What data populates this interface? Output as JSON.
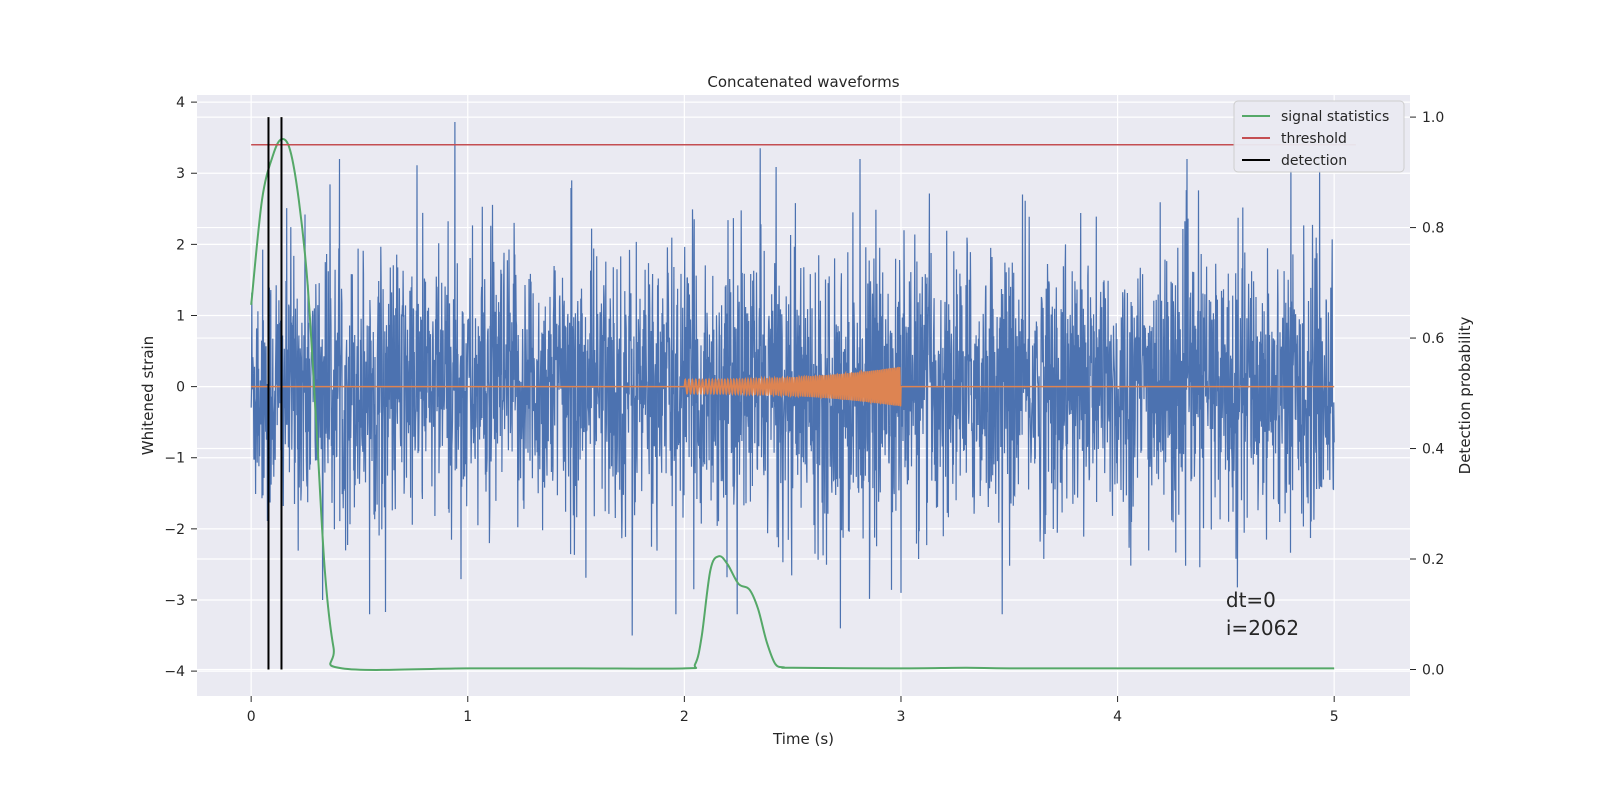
{
  "chart_data": {
    "type": "line",
    "title": "Concatenated waveforms",
    "xlabel": "Time (s)",
    "ylabel": "Whitened strain",
    "y2label": "Detection probability",
    "xlim": [
      -0.25,
      5.35
    ],
    "ylim": [
      -4.35,
      4.1
    ],
    "y2lim": [
      -0.048,
      1.04
    ],
    "xticks": [
      0,
      1,
      2,
      3,
      4,
      5
    ],
    "yticks": [
      -4,
      -3,
      -2,
      -1,
      0,
      1,
      2,
      3,
      4
    ],
    "y2ticks": [
      0.0,
      0.2,
      0.4,
      0.6,
      0.8,
      1.0
    ],
    "xtick_labels": [
      "0",
      "1",
      "2",
      "3",
      "4",
      "5"
    ],
    "ytick_labels": [
      "−4",
      "−3",
      "−2",
      "−1",
      "0",
      "1",
      "2",
      "3",
      "4"
    ],
    "y2tick_labels": [
      "0.0",
      "0.2",
      "0.4",
      "0.6",
      "0.8",
      "1.0"
    ],
    "grid": true,
    "legend_position": "top-right",
    "legend": [
      "signal statistics",
      "threshold",
      "detection"
    ],
    "colors": {
      "strain": "#4c72b0",
      "waveform": "#dd8452",
      "signal_statistics": "#55a868",
      "threshold": "#c44e52",
      "detection": "#000000",
      "background": "#eaeaf2",
      "grid": "#ffffff"
    },
    "series": [
      {
        "name": "strain",
        "axis": "left",
        "x_range": [
          0,
          5
        ],
        "noise_std": 1.0,
        "spike_peaks": [
          [
            0.94,
            3.72
          ],
          [
            2.35,
            3.35
          ],
          [
            1.76,
            -3.5
          ],
          [
            2.72,
            -3.4
          ],
          [
            3.0,
            -2.9
          ],
          [
            4.8,
            3.2
          ],
          [
            0.33,
            -3.0
          ]
        ]
      },
      {
        "name": "waveform",
        "axis": "left",
        "x_range": [
          2.0,
          3.0
        ],
        "amplitude_range": [
          0.1,
          0.28
        ]
      },
      {
        "name": "signal statistics",
        "axis": "right",
        "x": [
          0.0,
          0.05,
          0.1,
          0.14,
          0.18,
          0.22,
          0.26,
          0.3,
          0.34,
          0.38,
          0.42,
          1.0,
          1.5,
          2.0,
          2.05,
          2.08,
          2.12,
          2.16,
          2.2,
          2.25,
          2.3,
          2.34,
          2.38,
          2.42,
          2.46,
          2.5,
          3.0,
          3.3,
          3.5,
          4.0,
          5.0
        ],
        "values": [
          0.66,
          0.85,
          0.93,
          0.96,
          0.94,
          0.85,
          0.7,
          0.45,
          0.18,
          0.04,
          0.002,
          0.002,
          0.002,
          0.002,
          0.01,
          0.06,
          0.18,
          0.205,
          0.19,
          0.155,
          0.145,
          0.11,
          0.05,
          0.01,
          0.004,
          0.003,
          0.002,
          0.003,
          0.002,
          0.002,
          0.002
        ]
      },
      {
        "name": "threshold",
        "axis": "right",
        "x": [
          0,
          5.1
        ],
        "values": [
          0.95,
          0.95
        ]
      },
      {
        "name": "detection",
        "axis": "right",
        "x": [
          0.08,
          0.14
        ],
        "y_range": [
          0.0,
          1.0
        ]
      }
    ],
    "annotations": [
      "dt=0",
      "i=2062"
    ]
  }
}
